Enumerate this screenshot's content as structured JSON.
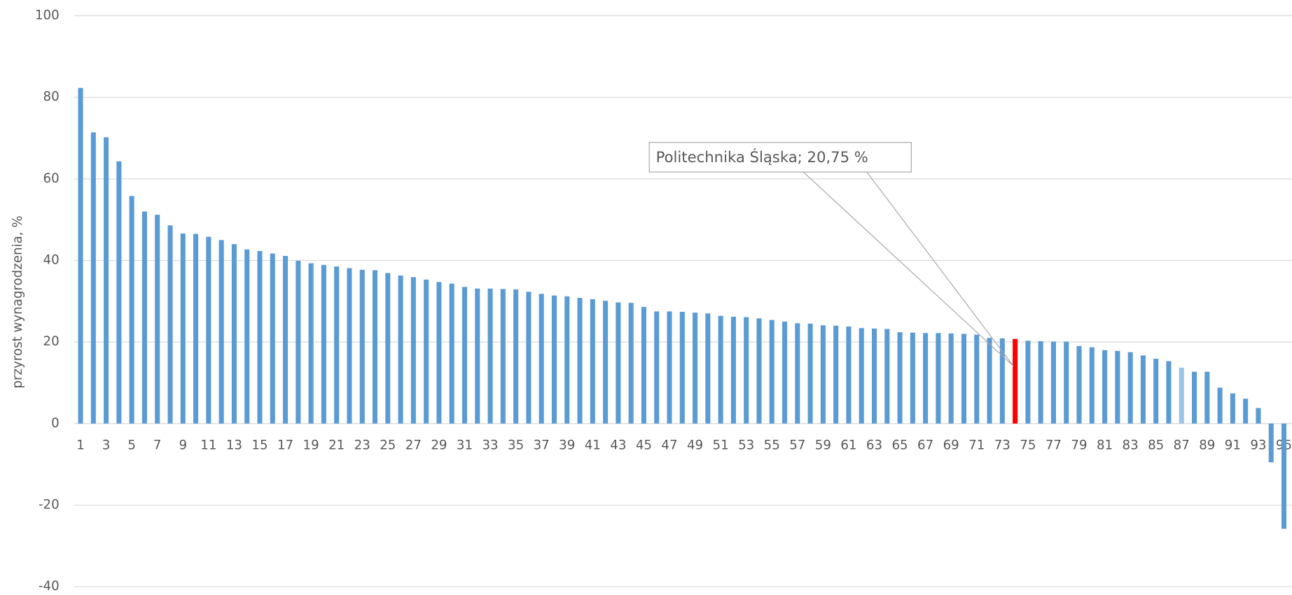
{
  "chart_data": {
    "type": "bar",
    "y_label": "przyrost wynagrodzenia, %",
    "annotation": "Politechnika Śląska;  20,75   %",
    "categories": [
      "1",
      null,
      "3",
      null,
      "5",
      null,
      "7",
      null,
      "9",
      null,
      "11",
      null,
      "13",
      null,
      "15",
      null,
      "17",
      null,
      "19",
      null,
      "21",
      null,
      "23",
      null,
      "25",
      null,
      "27",
      null,
      "29",
      null,
      "31",
      null,
      "33",
      null,
      "35",
      null,
      "37",
      null,
      "39",
      null,
      "41",
      null,
      "43",
      null,
      "45",
      null,
      "47",
      null,
      "49",
      null,
      "51",
      null,
      "53",
      null,
      "55",
      null,
      "57",
      null,
      "59",
      null,
      "61",
      null,
      "63",
      null,
      "65",
      null,
      "67",
      null,
      "69",
      null,
      "71",
      null,
      "73",
      null,
      "75",
      null,
      "77",
      null,
      "79",
      null,
      "81",
      null,
      "83",
      null,
      "85",
      null,
      "87",
      null,
      "89",
      null,
      "91",
      null,
      "93",
      null,
      "95"
    ],
    "values": [
      82.3,
      71.4,
      70.2,
      64.3,
      55.8,
      52.0,
      51.2,
      48.6,
      46.6,
      46.5,
      45.8,
      45.0,
      44.0,
      42.7,
      42.3,
      41.7,
      41.1,
      39.9,
      39.3,
      38.9,
      38.5,
      38.1,
      37.7,
      37.6,
      36.9,
      36.3,
      35.9,
      35.3,
      34.7,
      34.3,
      33.5,
      33.1,
      33.1,
      33.0,
      32.9,
      32.3,
      31.8,
      31.4,
      31.2,
      30.8,
      30.5,
      30.1,
      29.7,
      29.6,
      28.6,
      27.5,
      27.5,
      27.4,
      27.2,
      27.0,
      26.4,
      26.2,
      26.1,
      25.8,
      25.4,
      25.0,
      24.6,
      24.5,
      24.1,
      24.0,
      23.8,
      23.4,
      23.3,
      23.2,
      22.4,
      22.3,
      22.2,
      22.2,
      22.1,
      22.0,
      21.8,
      21.0,
      20.9,
      20.75,
      20.3,
      20.2,
      20.1,
      20.1,
      19.0,
      18.7,
      18.0,
      17.8,
      17.5,
      16.7,
      15.9,
      15.3,
      13.7,
      12.7,
      12.7,
      8.8,
      7.4,
      6.1,
      3.8,
      -9.5,
      -25.8
    ],
    "colors": [
      "#5b9bd5",
      "#5b9bd5",
      "#5b9bd5",
      "#5b9bd5",
      "#5b9bd5",
      "#5b9bd5",
      "#5b9bd5",
      "#5b9bd5",
      "#5b9bd5",
      "#5b9bd5",
      "#5b9bd5",
      "#5b9bd5",
      "#5b9bd5",
      "#5b9bd5",
      "#5b9bd5",
      "#5b9bd5",
      "#5b9bd5",
      "#5b9bd5",
      "#5b9bd5",
      "#5b9bd5",
      "#5b9bd5",
      "#5b9bd5",
      "#5b9bd5",
      "#5b9bd5",
      "#5b9bd5",
      "#5b9bd5",
      "#5b9bd5",
      "#5b9bd5",
      "#5b9bd5",
      "#5b9bd5",
      "#5b9bd5",
      "#5b9bd5",
      "#5b9bd5",
      "#5b9bd5",
      "#5b9bd5",
      "#5b9bd5",
      "#5b9bd5",
      "#5b9bd5",
      "#5b9bd5",
      "#5b9bd5",
      "#5b9bd5",
      "#5b9bd5",
      "#5b9bd5",
      "#5b9bd5",
      "#5b9bd5",
      "#5b9bd5",
      "#5b9bd5",
      "#5b9bd5",
      "#5b9bd5",
      "#5b9bd5",
      "#5b9bd5",
      "#5b9bd5",
      "#5b9bd5",
      "#5b9bd5",
      "#5b9bd5",
      "#5b9bd5",
      "#5b9bd5",
      "#5b9bd5",
      "#5b9bd5",
      "#5b9bd5",
      "#5b9bd5",
      "#5b9bd5",
      "#5b9bd5",
      "#5b9bd5",
      "#5b9bd5",
      "#5b9bd5",
      "#5b9bd5",
      "#5b9bd5",
      "#5b9bd5",
      "#5b9bd5",
      "#5b9bd5",
      "#5b9bd5",
      "#5b9bd5",
      "#ff0000",
      "#5b9bd5",
      "#5b9bd5",
      "#5b9bd5",
      "#5b9bd5",
      "#5b9bd5",
      "#5b9bd5",
      "#5b9bd5",
      "#5b9bd5",
      "#5b9bd5",
      "#5b9bd5",
      "#5b9bd5",
      "#5b9bd5",
      "#9dc3e6",
      "#5b9bd5",
      "#5b9bd5",
      "#5b9bd5",
      "#5b9bd5",
      "#5b9bd5",
      "#5b9bd5",
      "#5b9bd5",
      "#5b9bd5"
    ],
    "ylim": [
      -40,
      100
    ],
    "yticks": [
      -40,
      -20,
      0,
      20,
      40,
      60,
      80,
      100
    ],
    "grid": true
  }
}
